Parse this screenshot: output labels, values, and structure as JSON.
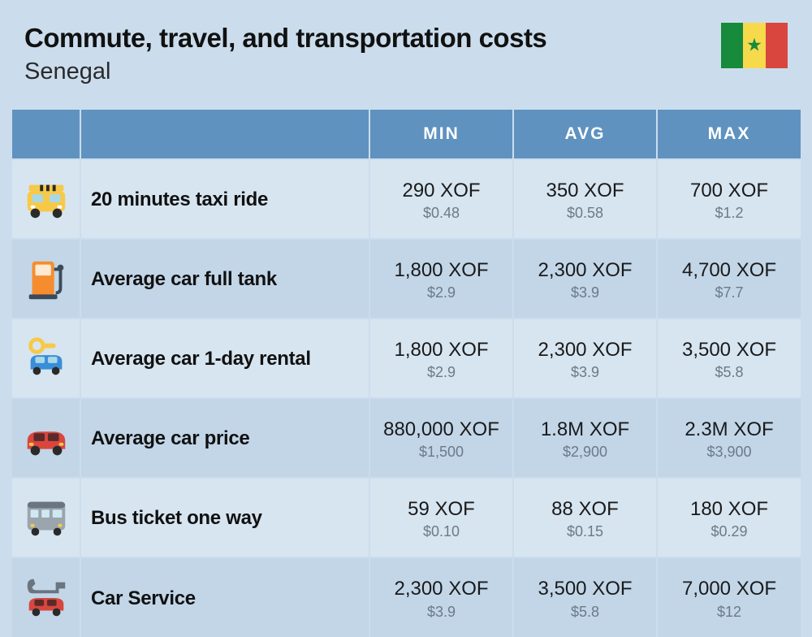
{
  "title": "Commute, travel, and transportation costs",
  "country": "Senegal",
  "flag": {
    "stripes": [
      "#178a3b",
      "#f7d94c",
      "#d8463e"
    ],
    "star_color": "#178a3b"
  },
  "columns": [
    "MIN",
    "AVG",
    "MAX"
  ],
  "theme": {
    "page_bg": "#cbdded",
    "header_bg": "#5f92bf",
    "header_text": "#ffffff",
    "row_alt_a": "#d7e5f0",
    "row_alt_b": "#c2d6e8",
    "xof_color": "#1a1a1a",
    "usd_color": "#6a7a88",
    "label_color": "#111111",
    "title_fontsize": 33,
    "subtitle_fontsize": 29,
    "header_fontsize": 21,
    "label_fontsize": 24,
    "xof_fontsize": 24,
    "usd_fontsize": 18
  },
  "rows": [
    {
      "icon": "taxi-icon",
      "label": "20 minutes taxi ride",
      "min": {
        "xof": "290 XOF",
        "usd": "$0.48"
      },
      "avg": {
        "xof": "350 XOF",
        "usd": "$0.58"
      },
      "max": {
        "xof": "700 XOF",
        "usd": "$1.2"
      }
    },
    {
      "icon": "fuel-icon",
      "label": "Average car full tank",
      "min": {
        "xof": "1,800 XOF",
        "usd": "$2.9"
      },
      "avg": {
        "xof": "2,300 XOF",
        "usd": "$3.9"
      },
      "max": {
        "xof": "4,700 XOF",
        "usd": "$7.7"
      }
    },
    {
      "icon": "rental-icon",
      "label": "Average car 1-day rental",
      "min": {
        "xof": "1,800 XOF",
        "usd": "$2.9"
      },
      "avg": {
        "xof": "2,300 XOF",
        "usd": "$3.9"
      },
      "max": {
        "xof": "3,500 XOF",
        "usd": "$5.8"
      }
    },
    {
      "icon": "car-icon",
      "label": "Average car price",
      "min": {
        "xof": "880,000 XOF",
        "usd": "$1,500"
      },
      "avg": {
        "xof": "1.8M XOF",
        "usd": "$2,900"
      },
      "max": {
        "xof": "2.3M XOF",
        "usd": "$3,900"
      }
    },
    {
      "icon": "bus-icon",
      "label": "Bus ticket one way",
      "min": {
        "xof": "59 XOF",
        "usd": "$0.10"
      },
      "avg": {
        "xof": "88 XOF",
        "usd": "$0.15"
      },
      "max": {
        "xof": "180 XOF",
        "usd": "$0.29"
      }
    },
    {
      "icon": "service-icon",
      "label": "Car Service",
      "min": {
        "xof": "2,300 XOF",
        "usd": "$3.9"
      },
      "avg": {
        "xof": "3,500 XOF",
        "usd": "$5.8"
      },
      "max": {
        "xof": "7,000 XOF",
        "usd": "$12"
      }
    }
  ]
}
